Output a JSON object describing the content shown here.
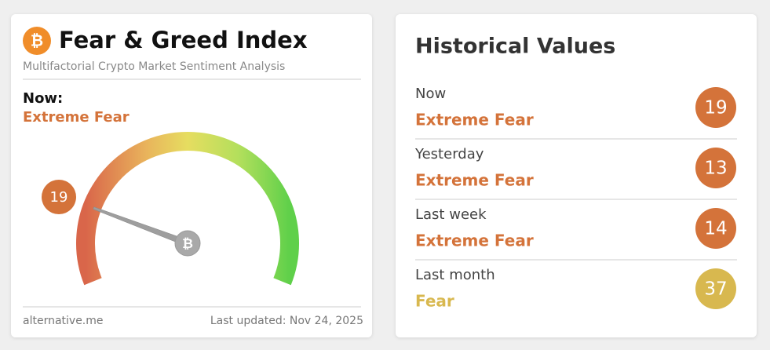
{
  "index_card": {
    "title": "Fear & Greed Index",
    "subtitle": "Multifactorial Crypto Market Sentiment Analysis",
    "now_label": "Now:",
    "now_classification": "Extreme Fear",
    "value": 19,
    "source": "alternative.me",
    "last_updated": "Last updated: Nov 24, 2025"
  },
  "historical": {
    "title": "Historical Values",
    "rows": [
      {
        "label": "Now",
        "classification": "Extreme Fear",
        "value": 19,
        "color": "#d4733a"
      },
      {
        "label": "Yesterday",
        "classification": "Extreme Fear",
        "value": 13,
        "color": "#d4733a"
      },
      {
        "label": "Last week",
        "classification": "Extreme Fear",
        "value": 14,
        "color": "#d4733a"
      },
      {
        "label": "Last month",
        "classification": "Fear",
        "value": 37,
        "color": "#d8b84f"
      }
    ]
  }
}
